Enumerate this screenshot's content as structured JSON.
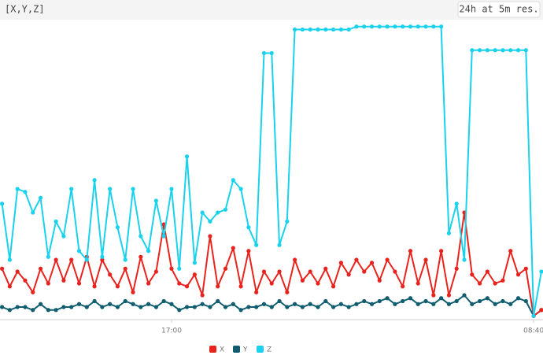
{
  "chart_data": {
    "type": "line",
    "title": "[X,Y,Z]",
    "subtitle": "24h at 5m res.",
    "categories": [
      null,
      null,
      null,
      null,
      null,
      null,
      null,
      null,
      null,
      null,
      null,
      null,
      null,
      null,
      null,
      null,
      null,
      null,
      null,
      null,
      null,
      null,
      "17:00",
      null,
      null,
      null,
      null,
      null,
      null,
      null,
      null,
      null,
      null,
      null,
      null,
      null,
      null,
      null,
      null,
      null,
      null,
      null,
      null,
      null,
      null,
      null,
      null,
      null,
      null,
      null,
      null,
      null,
      null,
      null,
      null,
      null,
      null,
      null,
      null,
      null,
      null,
      null,
      null,
      null,
      null,
      null,
      null,
      null,
      null,
      "08:40",
      null
    ],
    "ylim": [
      0,
      100
    ],
    "series": [
      {
        "name": "X",
        "color": "#e8231d",
        "values": [
          17,
          11,
          16,
          13,
          9,
          17,
          12,
          20,
          13,
          20,
          12,
          21,
          11,
          20,
          15,
          11,
          17,
          9,
          21,
          12,
          16,
          32,
          17,
          12,
          11,
          15,
          8,
          28,
          11,
          17,
          24,
          11,
          23,
          9,
          16,
          12,
          16,
          9,
          20,
          13,
          16,
          12,
          17,
          11,
          19,
          15,
          20,
          16,
          19,
          13,
          20,
          16,
          11,
          23,
          12,
          20,
          8,
          23,
          8,
          17,
          36,
          15,
          12,
          16,
          12,
          13,
          23,
          15,
          17,
          1,
          3
        ]
      },
      {
        "name": "Y",
        "color": "#0f5d6e",
        "values": [
          4,
          3,
          4,
          4,
          3,
          5,
          3,
          3,
          4,
          4,
          5,
          4,
          6,
          4,
          5,
          4,
          6,
          5,
          4,
          5,
          4,
          6,
          5,
          3,
          4,
          4,
          5,
          4,
          6,
          4,
          5,
          3,
          4,
          4,
          5,
          4,
          6,
          4,
          5,
          4,
          5,
          4,
          6,
          4,
          5,
          4,
          5,
          6,
          5,
          6,
          7,
          5,
          6,
          7,
          5,
          6,
          5,
          7,
          5,
          6,
          8,
          5,
          6,
          7,
          5,
          6,
          5,
          7,
          6,
          1,
          3
        ]
      },
      {
        "name": "Z",
        "color": "#1ad2ec",
        "values": [
          39,
          20,
          44,
          43,
          36,
          41,
          21,
          33,
          28,
          44,
          23,
          20,
          47,
          21,
          44,
          31,
          20,
          44,
          28,
          23,
          40,
          28,
          44,
          17,
          55,
          19,
          36,
          33,
          36,
          37,
          47,
          44,
          31,
          25,
          90,
          90,
          25,
          33,
          98,
          98,
          98,
          98,
          98,
          98,
          98,
          98,
          99,
          99,
          99,
          99,
          99,
          99,
          99,
          99,
          99,
          99,
          99,
          99,
          29,
          39,
          20,
          91,
          91,
          91,
          91,
          91,
          91,
          91,
          91,
          1,
          16
        ]
      }
    ]
  }
}
